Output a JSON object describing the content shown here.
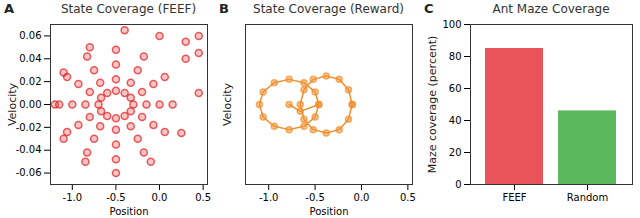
{
  "chart_data": [
    {
      "label": "A",
      "type": "scatter",
      "title": "State Coverage (FEEF)",
      "x_label": "Position",
      "y_label": "Velocity",
      "color": "#e41a1c",
      "marker": "circle",
      "x": [
        -0.3,
        -0.33,
        -0.4,
        -0.5,
        -0.6,
        -0.67,
        -0.7,
        -0.67,
        -0.6,
        -0.5,
        -0.4,
        -0.33,
        -0.15,
        -0.2,
        -0.33,
        -0.5,
        -0.68,
        -0.8,
        -0.85,
        -0.8,
        -0.68,
        -0.5,
        -0.33,
        -0.2,
        0,
        -0.07,
        -0.25,
        -0.5,
        -0.75,
        -0.93,
        -1.0,
        -0.93,
        -0.75,
        -0.5,
        -0.25,
        -0.07,
        0.15,
        0.06,
        -0.18,
        -0.5,
        -0.83,
        -1.06,
        -1.15,
        -1.06,
        -0.83,
        -0.5,
        -0.18,
        0.06,
        0.45,
        0.3,
        0.0,
        -0.4,
        -0.8,
        -1.1,
        -1.2,
        -1.1,
        -0.85,
        -0.5,
        -0.1,
        0.25,
        0.45,
        0.3,
        0.45
      ],
      "values": [
        0,
        0.006,
        0.01,
        0.012,
        0.01,
        0.006,
        0,
        -0.006,
        -0.01,
        -0.012,
        -0.01,
        -0.006,
        0,
        0.011,
        0.019,
        0.022,
        0.019,
        0.011,
        0,
        -0.011,
        -0.019,
        -0.022,
        -0.019,
        -0.011,
        0,
        0.018,
        0.03,
        0.035,
        0.03,
        0.018,
        0,
        -0.018,
        -0.03,
        -0.035,
        -0.03,
        -0.018,
        0,
        0.024,
        0.042,
        0.048,
        0.042,
        0.024,
        0,
        -0.024,
        -0.042,
        -0.048,
        -0.042,
        -0.024,
        0.01,
        0.04,
        0.06,
        0.065,
        0.05,
        0.028,
        0,
        -0.03,
        -0.05,
        -0.06,
        -0.05,
        -0.025,
        0.06,
        0.055,
        0.045
      ],
      "xlim": [
        -1.25,
        0.55
      ],
      "ylim": [
        -0.07,
        0.07
      ],
      "xticks": [
        {
          "value": -1,
          "label": "-1.0"
        },
        -0.5,
        {
          "value": 0,
          "label": "0.0"
        },
        0.5
      ],
      "yticks": [
        -0.06,
        -0.04,
        -0.02,
        {
          "value": 0,
          "label": "0.00"
        },
        0.02,
        0.04,
        0.06
      ]
    },
    {
      "label": "B",
      "type": "line",
      "title": "State Coverage (Reward)",
      "x_label": "Position",
      "y_label": "Velocity",
      "color": "#f28e2b",
      "marker": "circle",
      "tick_labels": "x",
      "x": [
        -0.78,
        -0.66,
        -0.46,
        -0.5,
        -0.62,
        -0.78,
        -0.94,
        -1.06,
        -1.1,
        -1.06,
        -0.94,
        -0.78,
        -0.62,
        -0.5,
        -0.46,
        null,
        -0.1,
        -0.14,
        -0.24,
        -0.38,
        -0.52,
        -0.62,
        -0.66,
        -0.62,
        -0.52,
        -0.38,
        -0.24,
        -0.14,
        -0.1
      ],
      "values": [
        0,
        -0.006,
        0,
        0.011,
        0.019,
        0.022,
        0.019,
        0.011,
        0,
        -0.011,
        -0.019,
        -0.022,
        -0.019,
        -0.011,
        0,
        null,
        0,
        0.013,
        0.022,
        0.025,
        0.022,
        0.013,
        0,
        -0.013,
        -0.022,
        -0.025,
        -0.022,
        -0.013,
        0
      ],
      "xlim": [
        -1.25,
        0.55
      ],
      "ylim": [
        -0.07,
        0.07
      ],
      "xticks": [
        {
          "value": -1,
          "label": "-1.0"
        },
        -0.5,
        {
          "value": 0,
          "label": "0.0"
        },
        0.5
      ]
    },
    {
      "label": "C",
      "type": "bar",
      "title": "Ant Maze Coverage",
      "y_label": "Maze coverage (percent)",
      "categories": [
        "FEEF",
        "Random"
      ],
      "values": [
        85,
        46
      ],
      "colors": [
        "#e8545a",
        "#5cb85c"
      ],
      "ylim": [
        0,
        100
      ],
      "yticks": [
        0,
        20,
        40,
        60,
        80,
        100
      ]
    }
  ]
}
